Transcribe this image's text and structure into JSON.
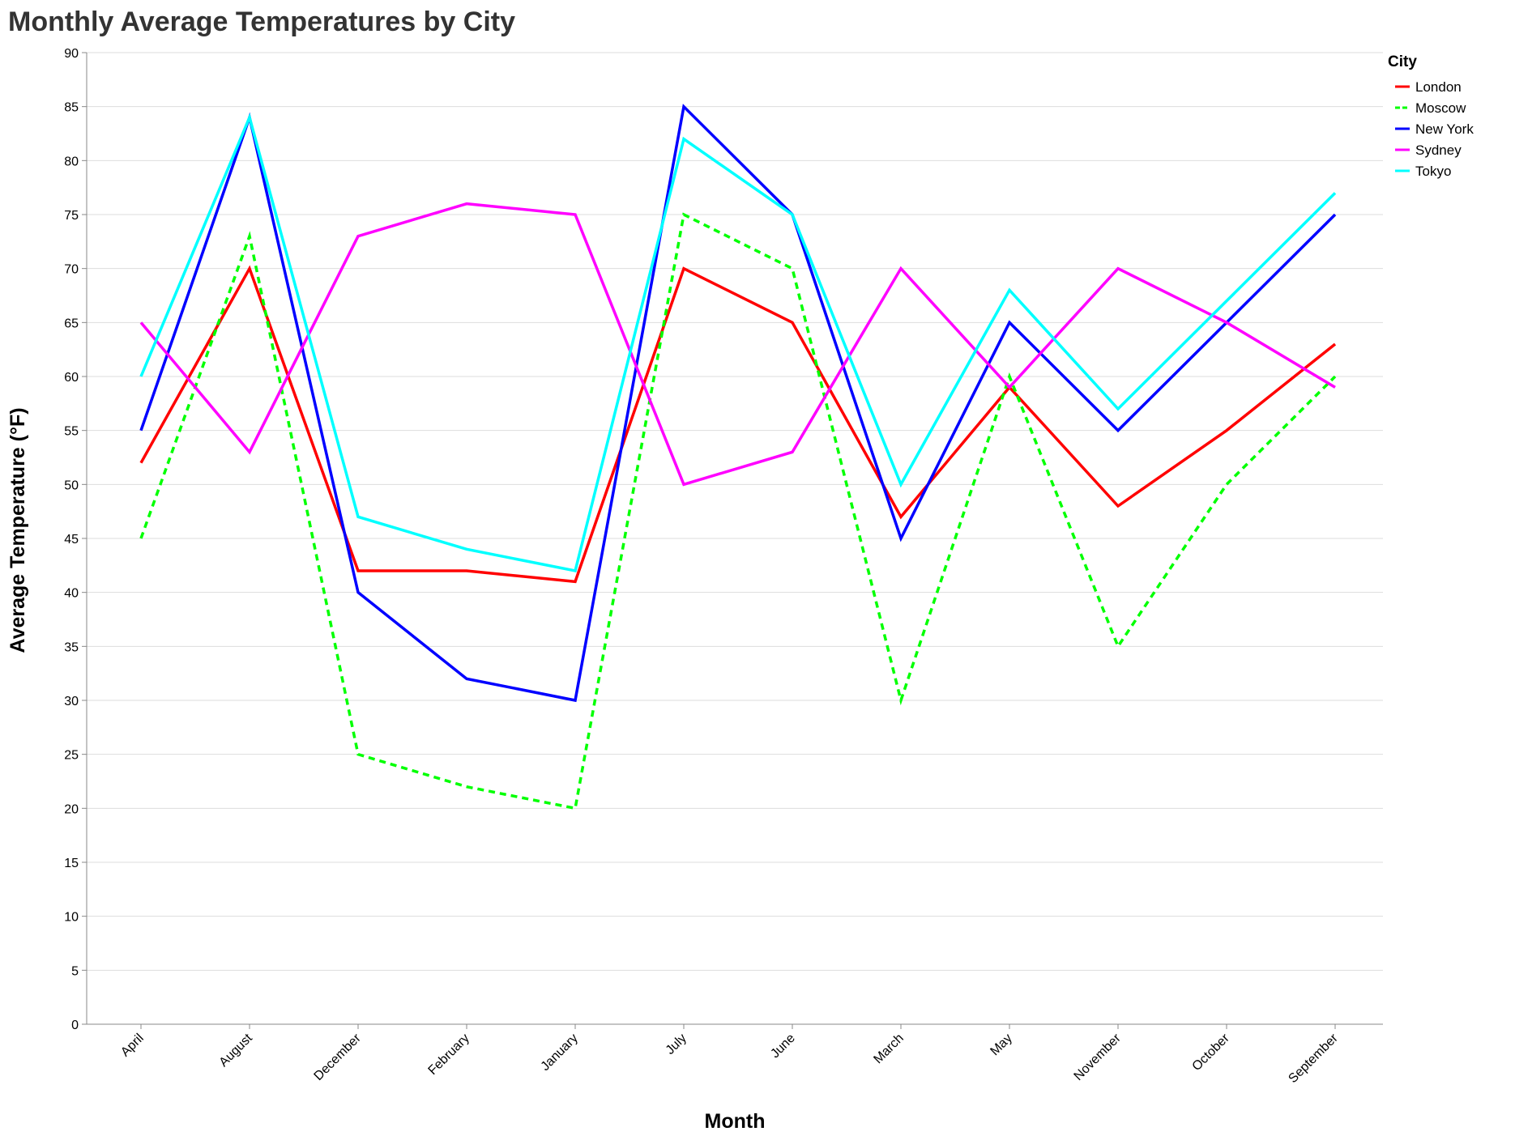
{
  "chart_data": {
    "type": "line",
    "title": "Monthly Average Temperatures by City",
    "xlabel": "Month",
    "ylabel": "Average Temperature (°F)",
    "ylim": [
      0,
      90
    ],
    "y_ticks": [
      0,
      5,
      10,
      15,
      20,
      25,
      30,
      35,
      40,
      45,
      50,
      55,
      60,
      65,
      70,
      75,
      80,
      85,
      90
    ],
    "grid": "horizontal",
    "legend": {
      "title": "City",
      "position": "top-right"
    },
    "categories": [
      "April",
      "August",
      "December",
      "February",
      "January",
      "July",
      "June",
      "March",
      "May",
      "November",
      "October",
      "September"
    ],
    "series": [
      {
        "name": "London",
        "color": "#ff0000",
        "dashed": false,
        "values": [
          52,
          70,
          42,
          42,
          41,
          70,
          65,
          47,
          59,
          48,
          55,
          63
        ]
      },
      {
        "name": "Moscow",
        "color": "#00ff00",
        "dashed": true,
        "values": [
          45,
          73,
          25,
          22,
          20,
          75,
          70,
          30,
          60,
          35,
          50,
          60
        ]
      },
      {
        "name": "New York",
        "color": "#0000ff",
        "dashed": false,
        "values": [
          55,
          84,
          40,
          32,
          30,
          85,
          75,
          45,
          65,
          55,
          65,
          75
        ]
      },
      {
        "name": "Sydney",
        "color": "#ff00ff",
        "dashed": false,
        "values": [
          65,
          53,
          73,
          76,
          75,
          50,
          53,
          70,
          59,
          70,
          65,
          59
        ]
      },
      {
        "name": "Tokyo",
        "color": "#00ffff",
        "dashed": false,
        "values": [
          60,
          84,
          47,
          44,
          42,
          82,
          75,
          50,
          68,
          57,
          67,
          77
        ]
      }
    ]
  }
}
